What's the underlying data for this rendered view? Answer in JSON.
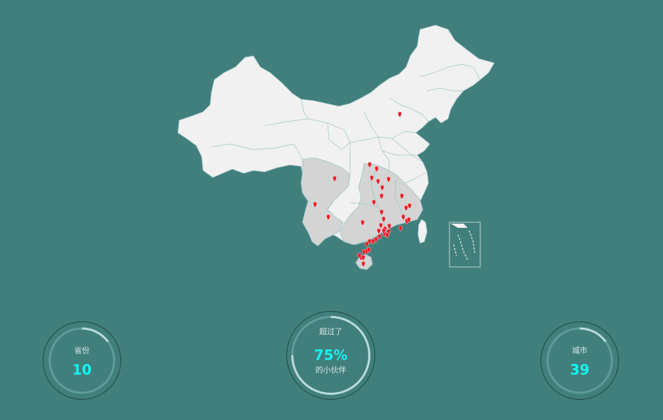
{
  "map": {
    "land_color": "#f1f1f1",
    "highlight_color": "#d4d4d4",
    "border_color": "#8fbcbc",
    "marker_color": "#e8202a",
    "marker_count": 42
  },
  "stats": {
    "provinces": {
      "label": "省份",
      "value": "10",
      "progress": 0.15
    },
    "percent": {
      "label": "超过了",
      "value": "75%",
      "sublabel": "的小伙伴",
      "progress": 0.75
    },
    "cities": {
      "label": "城市",
      "value": "39",
      "progress": 0.15
    }
  },
  "colors": {
    "background": "#417f7d",
    "ring_track": "#5f9c9a",
    "ring_progress": "#b9dcdb",
    "value_text": "#14f3f0"
  }
}
